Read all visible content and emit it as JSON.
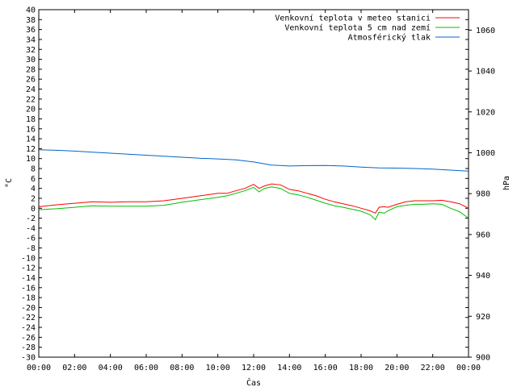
{
  "chart_data": {
    "type": "line",
    "xlabel": "Čas",
    "ylabel_left": "°C",
    "ylabel_right": "hPa",
    "x_ticks": [
      "00:00",
      "02:00",
      "04:00",
      "06:00",
      "08:00",
      "10:00",
      "12:00",
      "14:00",
      "16:00",
      "18:00",
      "20:00",
      "22:00",
      "00:00"
    ],
    "x_range_hours": [
      0,
      24
    ],
    "y_left_range": [
      -30,
      40
    ],
    "y_left_step": 2,
    "y_right_range": [
      900,
      1070
    ],
    "y_right_ticks": [
      900,
      920,
      940,
      960,
      980,
      1000,
      1020,
      1040,
      1060
    ],
    "grid": false,
    "legend_position": "top-right",
    "series": [
      {
        "name": "Venkovní teplota v meteo stanici",
        "color": "#ff0000",
        "axis": "left",
        "x": [
          0,
          1,
          2,
          3,
          4,
          5,
          6,
          7,
          8,
          9,
          10,
          10.5,
          11,
          11.5,
          12,
          12.3,
          12.6,
          13,
          13.5,
          14,
          14.5,
          15,
          15.5,
          16,
          16.5,
          17,
          17.5,
          18,
          18.5,
          18.8,
          19,
          19.3,
          19.5,
          20,
          20.5,
          21,
          21.5,
          22,
          22.5,
          23,
          23.5,
          24
        ],
        "values": [
          0.3,
          0.7,
          1.0,
          1.3,
          1.2,
          1.3,
          1.3,
          1.5,
          2.0,
          2.5,
          3.0,
          3.0,
          3.5,
          4.0,
          4.8,
          4.0,
          4.5,
          4.9,
          4.7,
          3.8,
          3.5,
          3.0,
          2.5,
          1.8,
          1.3,
          0.9,
          0.5,
          0.0,
          -0.5,
          -1.0,
          0.2,
          0.3,
          0.2,
          0.8,
          1.3,
          1.5,
          1.5,
          1.5,
          1.6,
          1.3,
          0.9,
          0.0
        ]
      },
      {
        "name": "Venkovní teplota 5 cm nad zemí",
        "color": "#00c000",
        "axis": "left",
        "x": [
          0,
          1,
          2,
          3,
          4,
          5,
          6,
          7,
          8,
          9,
          10,
          10.5,
          11,
          11.5,
          12,
          12.3,
          12.6,
          13,
          13.5,
          14,
          14.5,
          15,
          15.5,
          16,
          16.5,
          17,
          17.5,
          18,
          18.5,
          18.8,
          19,
          19.3,
          19.5,
          20,
          20.5,
          21,
          21.5,
          22,
          22.5,
          23,
          23.5,
          24
        ],
        "values": [
          -0.3,
          -0.1,
          0.2,
          0.5,
          0.4,
          0.4,
          0.4,
          0.6,
          1.2,
          1.7,
          2.2,
          2.5,
          3.0,
          3.5,
          4.2,
          3.3,
          4.0,
          4.3,
          4.0,
          3.0,
          2.7,
          2.2,
          1.6,
          1.0,
          0.5,
          0.2,
          -0.2,
          -0.6,
          -1.3,
          -2.3,
          -0.8,
          -1.0,
          -0.5,
          0.3,
          0.6,
          0.8,
          0.8,
          0.9,
          0.8,
          0.0,
          -0.7,
          -2.0
        ]
      },
      {
        "name": "Atmosférický tlak",
        "color": "#0066cc",
        "axis": "right",
        "x": [
          0,
          1,
          2,
          3,
          4,
          5,
          6,
          7,
          8,
          9,
          10,
          11,
          12,
          13,
          13.5,
          14,
          15,
          16,
          17,
          18,
          19,
          20,
          21,
          22,
          23,
          24
        ],
        "values": [
          1001.5,
          1001.2,
          1000.8,
          1000.3,
          999.8,
          999.3,
          998.8,
          998.3,
          997.8,
          997.3,
          997.0,
          996.5,
          995.5,
          994.0,
          993.8,
          993.5,
          993.7,
          993.8,
          993.5,
          993.0,
          992.6,
          992.5,
          992.3,
          992.0,
          991.5,
          991.0
        ]
      }
    ]
  }
}
